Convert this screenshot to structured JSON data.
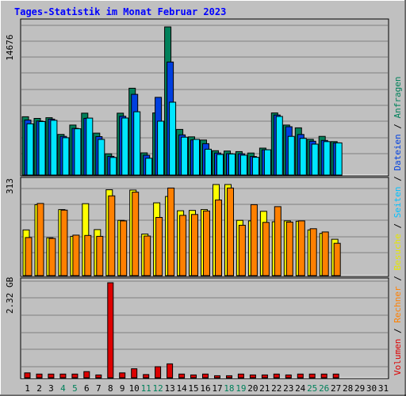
{
  "chart_data": {
    "type": "bar",
    "title": "Tages-Statistik im Monat Februar 2023",
    "categories": [
      "1",
      "2",
      "3",
      "4",
      "5",
      "6",
      "7",
      "8",
      "9",
      "10",
      "11",
      "12",
      "13",
      "14",
      "15",
      "16",
      "17",
      "18",
      "19",
      "20",
      "21",
      "22",
      "23",
      "24",
      "25",
      "26",
      "27",
      "28",
      "29",
      "30",
      "31"
    ],
    "weekend_days": [
      "4",
      "5",
      "11",
      "12",
      "18",
      "19",
      "25",
      "26"
    ],
    "axis_labels": {
      "top": "14676",
      "middle": "313",
      "bottom": "2.32 GB"
    },
    "legend": [
      {
        "text": "Volumen",
        "color": "#dd0000"
      },
      {
        "text": "Rechner",
        "color": "#ff8000"
      },
      {
        "text": "Besuche",
        "color": "#e6e600"
      },
      {
        "text": "Seiten",
        "color": "#00c0ff"
      },
      {
        "text": "Dateien",
        "color": "#0040e0"
      },
      {
        "text": "Anfragen",
        "color": "#00805a"
      }
    ],
    "legend_separator": " / ",
    "colors": {
      "hits": "#00805a",
      "files": "#0040e0",
      "pages": "#00e6ff",
      "visits": "#ffff00",
      "sites": "#ff8000",
      "kbytes": "#dd0000",
      "title": "#0000ff",
      "weekend": "#00805a",
      "weekday": "#000000",
      "panel": "#c0c0c0",
      "grid": "#808080"
    },
    "hits_ylim": [
      0,
      14676
    ],
    "visits_ylim": [
      0,
      313
    ],
    "kbytes_ylim_gb": [
      0,
      2.32
    ],
    "series": [
      {
        "name": "Anfragen",
        "panel": "top",
        "values": [
          5780,
          5610,
          5680,
          4030,
          4950,
          6130,
          4150,
          2100,
          6130,
          8600,
          2200,
          6150,
          14676,
          4520,
          3780,
          3470,
          2410,
          2380,
          2320,
          2180,
          2670,
          6150,
          4950,
          4680,
          3540,
          3830,
          3310,
          null,
          null,
          null,
          null
        ]
      },
      {
        "name": "Dateien",
        "panel": "top",
        "values": [
          5450,
          5350,
          5540,
          3830,
          4620,
          5620,
          3810,
          1850,
          5820,
          8000,
          1960,
          7700,
          11200,
          3980,
          3480,
          3110,
          2180,
          2120,
          2100,
          1840,
          2500,
          5950,
          4790,
          4020,
          3350,
          3430,
          3190,
          null,
          null,
          null,
          null
        ]
      },
      {
        "name": "Seiten",
        "panel": "top",
        "values": [
          5080,
          5300,
          5420,
          3700,
          4580,
          5640,
          3530,
          1740,
          5650,
          6270,
          1660,
          5340,
          7220,
          3750,
          3530,
          2560,
          2040,
          2090,
          1970,
          1760,
          2500,
          5810,
          3830,
          3630,
          3060,
          3310,
          3190,
          null,
          null,
          null,
          null
        ]
      },
      {
        "name": "Besuche",
        "panel": "middle",
        "values": [
          157,
          244,
          130,
          227,
          135,
          247,
          158,
          295,
          190,
          294,
          143,
          250,
          272,
          223,
          224,
          227,
          313,
          313,
          190,
          188,
          221,
          185,
          188,
          187,
          157,
          145,
          125,
          null,
          null,
          null,
          null
        ]
      },
      {
        "name": "Rechner",
        "panel": "middle",
        "values": [
          131,
          248,
          128,
          225,
          139,
          138,
          135,
          274,
          188,
          287,
          136,
          200,
          301,
          207,
          210,
          222,
          260,
          301,
          173,
          244,
          183,
          237,
          184,
          188,
          161,
          150,
          111,
          null,
          null,
          null,
          null
        ]
      },
      {
        "name": "Volumen",
        "panel": "bottom",
        "unit": "GB",
        "values": [
          0.12,
          0.09,
          0.09,
          0.09,
          0.09,
          0.15,
          0.07,
          2.32,
          0.12,
          0.22,
          0.08,
          0.27,
          0.34,
          0.09,
          0.07,
          0.09,
          0.05,
          0.05,
          0.09,
          0.07,
          0.07,
          0.09,
          0.07,
          0.09,
          0.09,
          0.09,
          0.09,
          null,
          null,
          null,
          null
        ]
      }
    ]
  }
}
